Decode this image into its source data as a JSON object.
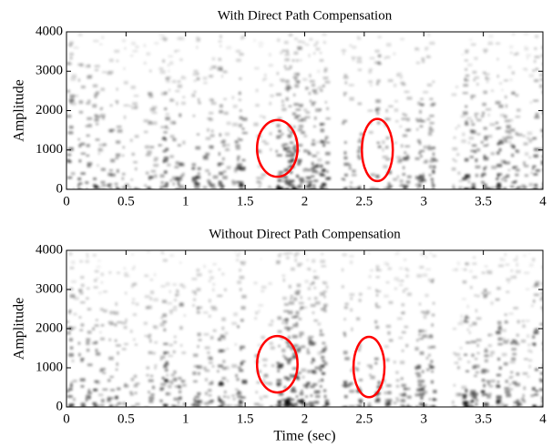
{
  "chart_data": [
    {
      "type": "spectrogram",
      "title": "With Direct Path Compensation",
      "ylabel": "Amplitude",
      "xlim": [
        0,
        4
      ],
      "xticks": [
        0,
        0.5,
        1,
        1.5,
        2,
        2.5,
        3,
        3.5,
        4
      ],
      "ylim": [
        0,
        4000
      ],
      "yticks": [
        0,
        1000,
        2000,
        3000,
        4000
      ],
      "highlights": [
        {
          "x": 1.77,
          "y": 1040,
          "rx": 0.17,
          "ry": 720,
          "color": "#ff0000"
        },
        {
          "x": 2.61,
          "y": 1000,
          "rx": 0.13,
          "ry": 790,
          "color": "#ff0000"
        }
      ]
    },
    {
      "type": "spectrogram",
      "title": "Without Direct Path Compensation",
      "ylabel": "Amplitude",
      "xlabel": "Time (sec)",
      "xlim": [
        0,
        4
      ],
      "xticks": [
        0,
        0.5,
        1,
        1.5,
        2,
        2.5,
        3,
        3.5,
        4
      ],
      "ylim": [
        0,
        4000
      ],
      "yticks": [
        0,
        1000,
        2000,
        3000,
        4000
      ],
      "highlights": [
        {
          "x": 1.77,
          "y": 1090,
          "rx": 0.17,
          "ry": 720,
          "color": "#ff0000"
        },
        {
          "x": 2.54,
          "y": 1020,
          "rx": 0.13,
          "ry": 770,
          "color": "#ff0000"
        }
      ]
    }
  ]
}
